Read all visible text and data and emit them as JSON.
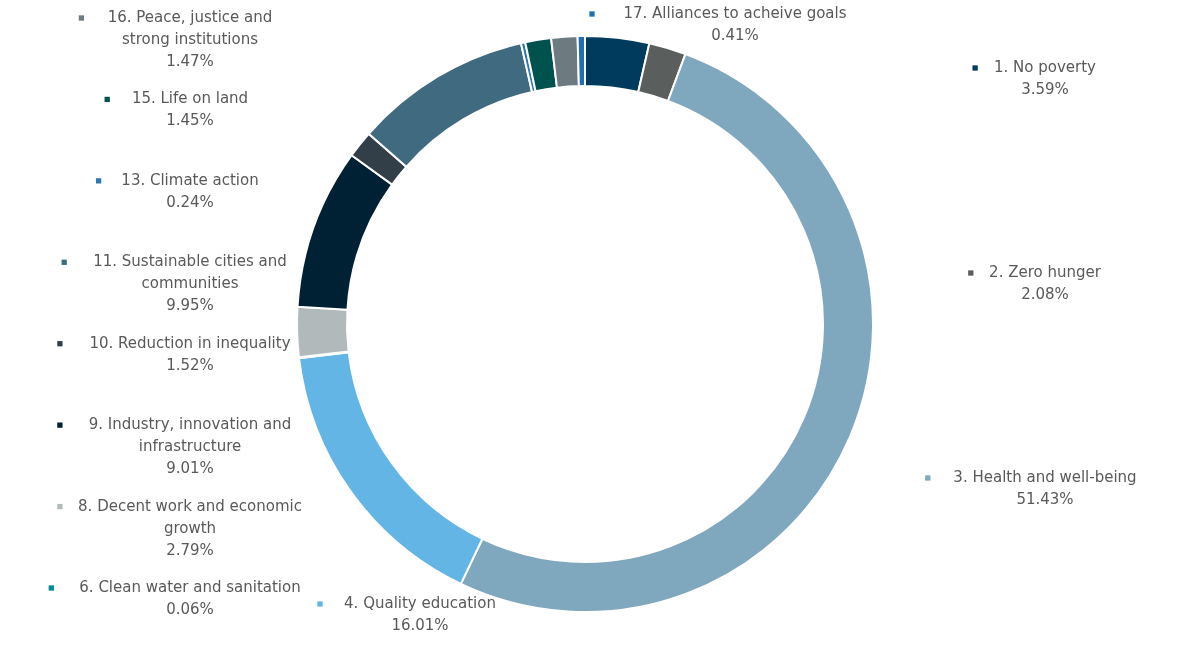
{
  "chart_data": {
    "type": "donut",
    "legend": "left",
    "categories": [
      "1. No poverty",
      "2. Zero hunger",
      "3. Health and well-being",
      "4. Quality education",
      "6. Clean water and sanitation",
      "8. Decent work and economic growth",
      "9. Industry, innovation and infrastructure",
      "10. Reduction in inequality",
      "11. Sustainable cities and communities",
      "13. Climate action",
      "15. Life on land",
      "16. Peace, justice and strong institutions",
      "17. Alliances to acheive goals"
    ],
    "values": [
      3.59,
      2.08,
      51.43,
      16.01,
      0.06,
      2.79,
      9.01,
      1.52,
      9.95,
      0.24,
      1.45,
      1.47,
      0.41
    ],
    "value_labels": [
      "3.59%",
      "2.08%",
      "51.43%",
      "16.01%",
      "0.06%",
      "2.79%",
      "9.01%",
      "1.52%",
      "9.95%",
      "0.24%",
      "1.45%",
      "1.47%",
      "0.41%"
    ],
    "colors": [
      "#003a5c",
      "#5a5f5e",
      "#7fa7bd",
      "#62b5e5",
      "#008c95",
      "#b1b9bb",
      "#002134",
      "#333f48",
      "#3f6a80",
      "#2a7ab0",
      "#00524f",
      "#6d7a80",
      "#1f6fb5"
    ]
  }
}
